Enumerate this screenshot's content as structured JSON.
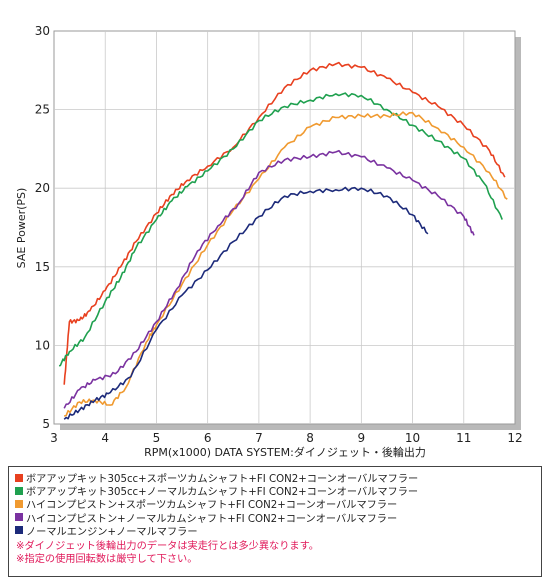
{
  "chart_data": {
    "type": "line",
    "xlabel": "RPM(x1000) DATA SYSTEM:ダイノジェット・後輪出力",
    "ylabel": "SAE Power(PS)",
    "xlim": [
      3,
      12
    ],
    "ylim": [
      5,
      30
    ],
    "x_ticks": [
      "3",
      "4",
      "5",
      "6",
      "7",
      "8",
      "9",
      "10",
      "11",
      "12"
    ],
    "y_ticks": [
      "5",
      "10",
      "15",
      "20",
      "25",
      "30"
    ],
    "grid": true,
    "legend_position": "bottom",
    "series": [
      {
        "name": "ボアアップキット305cc+スポーツカムシャフト+FI CON2+コーンオーバルマフラー",
        "color": "#e8401f",
        "points": [
          [
            3.2,
            7.5
          ],
          [
            3.3,
            11.5
          ],
          [
            3.5,
            11.6
          ],
          [
            3.7,
            12.2
          ],
          [
            4.0,
            13.5
          ],
          [
            4.3,
            15.0
          ],
          [
            4.6,
            16.6
          ],
          [
            5.0,
            18.4
          ],
          [
            5.3,
            19.6
          ],
          [
            5.6,
            20.5
          ],
          [
            6.0,
            21.4
          ],
          [
            6.5,
            22.6
          ],
          [
            7.0,
            24.5
          ],
          [
            7.5,
            26.4
          ],
          [
            8.0,
            27.5
          ],
          [
            8.5,
            27.9
          ],
          [
            9.0,
            27.7
          ],
          [
            9.5,
            27.0
          ],
          [
            10.0,
            26.1
          ],
          [
            10.5,
            25.2
          ],
          [
            11.0,
            24.0
          ],
          [
            11.5,
            22.4
          ],
          [
            11.8,
            20.7
          ]
        ]
      },
      {
        "name": "ボアアップキット305cc+ノーマルカムシャフト+FI CON2+コーンオーバルマフラー",
        "color": "#1fa04f",
        "points": [
          [
            3.1,
            8.7
          ],
          [
            3.3,
            9.6
          ],
          [
            3.6,
            10.5
          ],
          [
            4.0,
            12.8
          ],
          [
            4.3,
            14.3
          ],
          [
            4.6,
            16.2
          ],
          [
            5.0,
            18.0
          ],
          [
            5.3,
            19.2
          ],
          [
            5.6,
            20.1
          ],
          [
            6.0,
            21.1
          ],
          [
            6.5,
            22.5
          ],
          [
            7.0,
            24.3
          ],
          [
            7.5,
            25.2
          ],
          [
            8.0,
            25.6
          ],
          [
            8.5,
            26.0
          ],
          [
            9.0,
            25.9
          ],
          [
            9.5,
            25.0
          ],
          [
            10.0,
            24.0
          ],
          [
            10.5,
            23.0
          ],
          [
            11.0,
            21.9
          ],
          [
            11.4,
            20.3
          ],
          [
            11.75,
            18.0
          ]
        ]
      },
      {
        "name": "ハイコンプピストン+スポーツカムシャフト+FI CON2+コーンオーバルマフラー",
        "color": "#f09a30",
        "points": [
          [
            3.2,
            5.5
          ],
          [
            3.5,
            6.4
          ],
          [
            3.8,
            6.5
          ],
          [
            4.1,
            6.2
          ],
          [
            4.4,
            7.3
          ],
          [
            4.8,
            10.2
          ],
          [
            5.0,
            11.3
          ],
          [
            5.5,
            13.9
          ],
          [
            6.0,
            16.4
          ],
          [
            6.5,
            18.6
          ],
          [
            7.0,
            20.6
          ],
          [
            7.5,
            22.6
          ],
          [
            8.0,
            23.9
          ],
          [
            8.5,
            24.5
          ],
          [
            9.0,
            24.6
          ],
          [
            9.5,
            24.6
          ],
          [
            10.0,
            24.8
          ],
          [
            10.5,
            23.8
          ],
          [
            11.0,
            22.6
          ],
          [
            11.5,
            21.0
          ],
          [
            11.85,
            19.3
          ]
        ]
      },
      {
        "name": "ハイコンプピストン+ノーマルカムシャフト+FI CON2+コーンオーバルマフラー",
        "color": "#7a32a0",
        "points": [
          [
            3.2,
            6.0
          ],
          [
            3.5,
            7.2
          ],
          [
            3.8,
            7.8
          ],
          [
            4.2,
            8.2
          ],
          [
            4.6,
            9.6
          ],
          [
            5.0,
            11.5
          ],
          [
            5.4,
            13.6
          ],
          [
            5.8,
            16.0
          ],
          [
            6.2,
            17.6
          ],
          [
            6.6,
            19.0
          ],
          [
            7.0,
            21.0
          ],
          [
            7.5,
            21.8
          ],
          [
            8.0,
            22.0
          ],
          [
            8.5,
            22.3
          ],
          [
            9.0,
            22.0
          ],
          [
            9.5,
            21.3
          ],
          [
            10.0,
            20.5
          ],
          [
            10.5,
            19.5
          ],
          [
            11.0,
            18.2
          ],
          [
            11.2,
            17.0
          ]
        ]
      },
      {
        "name": "ノーマルエンジン+ノーマルマフラー",
        "color": "#1c2a7a",
        "points": [
          [
            3.2,
            5.3
          ],
          [
            3.5,
            5.9
          ],
          [
            3.8,
            6.5
          ],
          [
            4.1,
            7.0
          ],
          [
            4.5,
            8.0
          ],
          [
            5.0,
            11.0
          ],
          [
            5.5,
            13.2
          ],
          [
            6.0,
            14.8
          ],
          [
            6.5,
            16.6
          ],
          [
            7.0,
            18.2
          ],
          [
            7.5,
            19.5
          ],
          [
            8.0,
            19.8
          ],
          [
            8.5,
            19.9
          ],
          [
            9.0,
            20.0
          ],
          [
            9.5,
            19.5
          ],
          [
            10.0,
            18.3
          ],
          [
            10.3,
            17.1
          ]
        ]
      }
    ]
  },
  "notes": [
    "※ダイノジェット後輪出力のデータは実走行とは多少異なります。",
    "※指定の使用回転数は厳守して下さい。"
  ]
}
